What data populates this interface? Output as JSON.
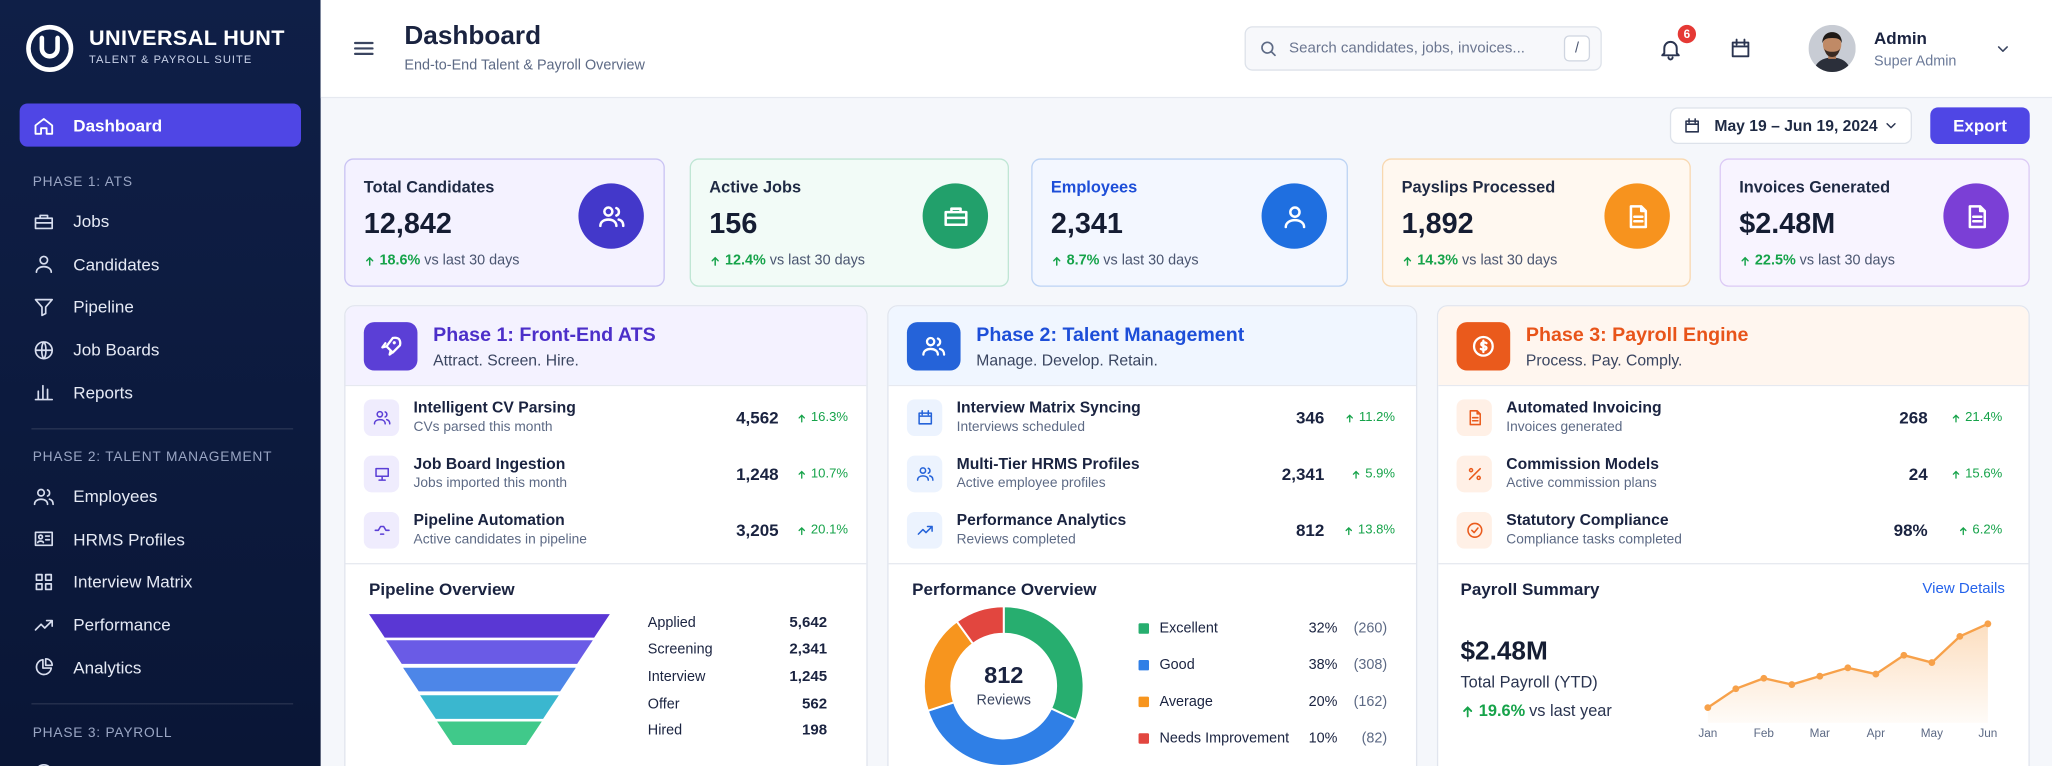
{
  "brand": {
    "name": "UNIVERSAL HUNT",
    "tagline": "TALENT & PAYROLL SUITE"
  },
  "sidebar": {
    "active": "Dashboard",
    "sections": [
      {
        "title": "PHASE 1: ATS",
        "items": [
          "Jobs",
          "Candidates",
          "Pipeline",
          "Job Boards",
          "Reports"
        ]
      },
      {
        "title": "PHASE 2: TALENT MANAGEMENT",
        "items": [
          "Employees",
          "HRMS Profiles",
          "Interview Matrix",
          "Performance",
          "Analytics"
        ]
      },
      {
        "title": "PHASE 3: PAYROLL",
        "items": []
      }
    ]
  },
  "header": {
    "title": "Dashboard",
    "subtitle": "End-to-End Talent & Payroll Overview",
    "search_placeholder": "Search candidates, jobs, invoices...",
    "search_shortcut": "/",
    "notifications": 6,
    "user": {
      "name": "Admin",
      "role": "Super Admin"
    }
  },
  "toolbar": {
    "date_range": "May 19 – Jun 19, 2024",
    "export": "Export"
  },
  "kpis": [
    {
      "label": "Total Candidates",
      "value": "12,842",
      "change": "18.6%",
      "period": "vs last 30 days"
    },
    {
      "label": "Active Jobs",
      "value": "156",
      "change": "12.4%",
      "period": "vs last 30 days"
    },
    {
      "label": "Employees",
      "value": "2,341",
      "change": "8.7%",
      "period": "vs last 30 days"
    },
    {
      "label": "Payslips Processed",
      "value": "1,892",
      "change": "14.3%",
      "period": "vs last 30 days"
    },
    {
      "label": "Invoices Generated",
      "value": "$2.48M",
      "change": "22.5%",
      "period": "vs last 30 days"
    }
  ],
  "phases": [
    {
      "title": "Phase 1: Front-End ATS",
      "subtitle": "Attract. Screen. Hire.",
      "rows": [
        {
          "title": "Intelligent CV Parsing",
          "subtitle": "CVs parsed this month",
          "value": "4,562",
          "change": "16.3%"
        },
        {
          "title": "Job Board Ingestion",
          "subtitle": "Jobs imported this month",
          "value": "1,248",
          "change": "10.7%"
        },
        {
          "title": "Pipeline Automation",
          "subtitle": "Active candidates in pipeline",
          "value": "3,205",
          "change": "20.1%"
        }
      ]
    },
    {
      "title": "Phase 2: Talent Management",
      "subtitle": "Manage. Develop. Retain.",
      "rows": [
        {
          "title": "Interview Matrix Syncing",
          "subtitle": "Interviews scheduled",
          "value": "346",
          "change": "11.2%"
        },
        {
          "title": "Multi-Tier HRMS Profiles",
          "subtitle": "Active employee profiles",
          "value": "2,341",
          "change": "5.9%"
        },
        {
          "title": "Performance Analytics",
          "subtitle": "Reviews completed",
          "value": "812",
          "change": "13.8%"
        }
      ]
    },
    {
      "title": "Phase 3: Payroll Engine",
      "subtitle": "Process. Pay. Comply.",
      "rows": [
        {
          "title": "Automated Invoicing",
          "subtitle": "Invoices generated",
          "value": "268",
          "change": "21.4%"
        },
        {
          "title": "Commission Models",
          "subtitle": "Active commission plans",
          "value": "24",
          "change": "15.6%"
        },
        {
          "title": "Statutory Compliance",
          "subtitle": "Compliance tasks completed",
          "value": "98%",
          "change": "6.2%"
        }
      ]
    }
  ],
  "pipeline_overview": {
    "title": "Pipeline Overview",
    "type": "funnel",
    "categories": [
      "Applied",
      "Screening",
      "Interview",
      "Offer",
      "Hired"
    ],
    "values": [
      5642,
      2341,
      1245,
      562,
      198
    ],
    "value_labels": [
      "5,642",
      "2,341",
      "1,245",
      "562",
      "198"
    ],
    "colors": [
      "#5a37d4",
      "#6a5be6",
      "#4d86e8",
      "#3ab7cf",
      "#40c98a"
    ]
  },
  "performance_overview": {
    "title": "Performance Overview",
    "type": "donut",
    "center_value": 812,
    "center_label": "Reviews",
    "categories": [
      "Excellent",
      "Good",
      "Average",
      "Needs Improvement"
    ],
    "values": [
      32,
      38,
      20,
      10
    ],
    "value_labels": [
      "32%",
      "38%",
      "20%",
      "10%"
    ],
    "counts": [
      260,
      308,
      162,
      82
    ],
    "count_labels": [
      "(260)",
      "(308)",
      "(162)",
      "(82)"
    ],
    "colors": [
      "#27ae6f",
      "#2f7fe6",
      "#f7951e",
      "#e2463f"
    ]
  },
  "payroll_summary": {
    "title": "Payroll Summary",
    "link": "View Details",
    "total": "$2.48M",
    "total_label": "Total Payroll (YTD)",
    "change": "19.6%",
    "change_period": "vs last year",
    "chart": {
      "type": "line",
      "categories": [
        "Jan",
        null,
        "Feb",
        null,
        "Mar",
        null,
        "Apr",
        null,
        "May",
        null,
        "Jun"
      ],
      "values": [
        12,
        30,
        40,
        34,
        42,
        50,
        44,
        62,
        55,
        80,
        92
      ],
      "ylim": [
        0,
        100
      ],
      "color": "#f7a14a"
    }
  }
}
